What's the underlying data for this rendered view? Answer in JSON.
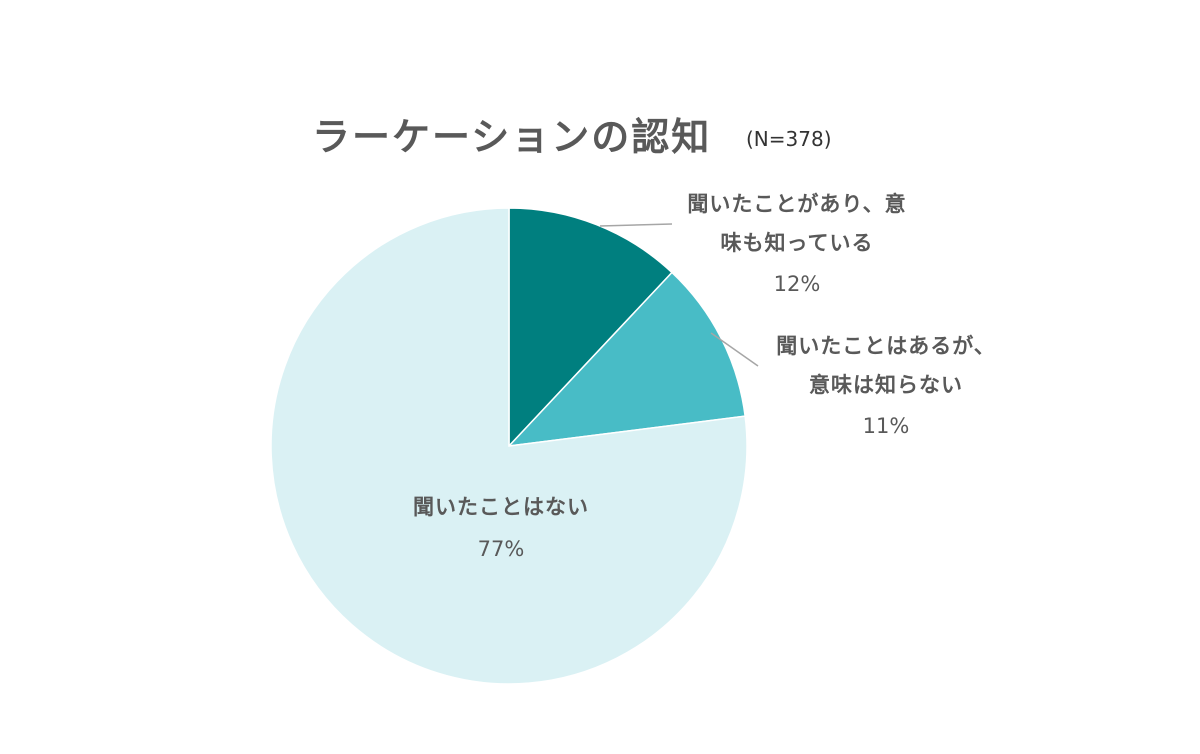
{
  "chart_data": {
    "type": "pie",
    "title": "ラーケーションの認知",
    "subtitle": "(N=378)",
    "start_angle": "12 o'clock",
    "direction": "clockwise",
    "slices": [
      {
        "label_lines": [
          "聞いたことがあり、意",
          "味も知っている"
        ],
        "value": 12,
        "display": "12%",
        "color": "#007f7f"
      },
      {
        "label_lines": [
          "聞いたことはあるが、",
          "意味は知らない"
        ],
        "value": 11,
        "display": "11%",
        "color": "#48bcc6"
      },
      {
        "label_lines": [
          "聞いたことはない"
        ],
        "value": 77,
        "display": "77%",
        "color": "#daf1f4"
      }
    ]
  }
}
